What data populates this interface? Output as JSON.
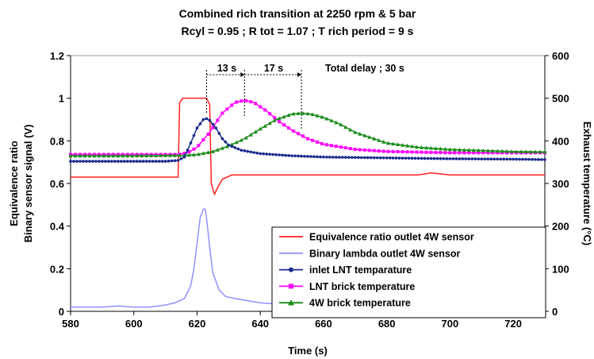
{
  "chart_data": {
    "type": "line",
    "title": "Combined rich transition at 2250 rpm & 5 bar",
    "subtitle": "Rcyl = 0.95 ; R tot = 1.07 ; T rich period = 9 s",
    "xlabel": "Time (s)",
    "ylabel_left": "Equivalence ratio",
    "ylabel_left2": "Binary sensor signal (V)",
    "ylabel_right": "Exhaust temperature (°C)",
    "xlim": [
      580,
      730
    ],
    "ylim_left": [
      0,
      1.2
    ],
    "ylim_right": [
      0,
      600
    ],
    "x_ticks": [
      "580",
      "600",
      "620",
      "640",
      "660",
      "680",
      "700",
      "720"
    ],
    "y_ticks_left": [
      "0",
      "0.2",
      "0.4",
      "0.6",
      "0.8",
      "1",
      "1.2"
    ],
    "y_ticks_right": [
      "0",
      "100",
      "200",
      "300",
      "400",
      "500",
      "600"
    ],
    "grid": false,
    "legend_position": "bottom-right",
    "annotations": {
      "delay1": "13 s",
      "delay2": "17 s",
      "total": "Total delay ; 30 s"
    },
    "series": [
      {
        "name": "Equivalence ratio outlet 4W sensor",
        "axis": "left",
        "color": "#ff2020",
        "marker": "none",
        "x": [
          580,
          600,
          614,
          614.5,
          615.5,
          623,
          624,
          624.5,
          625.5,
          626.5,
          628,
          631,
          640,
          660,
          680,
          690,
          694,
          700,
          720,
          730
        ],
        "y": [
          0.63,
          0.63,
          0.63,
          0.98,
          1.0,
          1.0,
          0.97,
          0.6,
          0.55,
          0.58,
          0.62,
          0.64,
          0.64,
          0.64,
          0.64,
          0.64,
          0.65,
          0.64,
          0.64,
          0.64
        ]
      },
      {
        "name": "Binary lambda outlet 4W sensor",
        "axis": "left",
        "color": "#9090ff",
        "marker": "none",
        "x": [
          580,
          590,
          595,
          600,
          605,
          610,
          613,
          616,
          618,
          619,
          620,
          621,
          622,
          622.5,
          623,
          624,
          625,
          627,
          629,
          632,
          636,
          640,
          650,
          660,
          680,
          700,
          720,
          730
        ],
        "y": [
          0.02,
          0.02,
          0.025,
          0.02,
          0.02,
          0.03,
          0.04,
          0.06,
          0.12,
          0.2,
          0.32,
          0.44,
          0.48,
          0.48,
          0.44,
          0.3,
          0.18,
          0.1,
          0.07,
          0.06,
          0.05,
          0.04,
          0.03,
          0.025,
          0.02,
          0.02,
          0.02,
          0.02
        ]
      },
      {
        "name": "inlet LNT temparature",
        "axis": "right",
        "color": "#1a2b8c",
        "marker": "circle",
        "x": [
          580,
          600,
          610,
          614,
          616,
          618,
          620,
          622,
          623,
          624,
          626,
          628,
          630,
          634,
          640,
          650,
          660,
          680,
          700,
          720,
          730
        ],
        "y": [
          352,
          352,
          352,
          354,
          362,
          395,
          430,
          450,
          452,
          448,
          430,
          405,
          390,
          378,
          370,
          365,
          362,
          360,
          358,
          357,
          356
        ]
      },
      {
        "name": "LNT brick temperature",
        "axis": "right",
        "color": "#ff00ff",
        "marker": "square",
        "x": [
          580,
          600,
          614,
          617,
          620,
          624,
          628,
          632,
          635,
          638,
          642,
          646,
          650,
          655,
          660,
          670,
          680,
          700,
          720,
          730
        ],
        "y": [
          368,
          368,
          368,
          372,
          385,
          420,
          465,
          490,
          495,
          490,
          470,
          445,
          425,
          405,
          392,
          380,
          375,
          372,
          372,
          372
        ]
      },
      {
        "name": "4W brick temperature",
        "axis": "right",
        "color": "#1a8c1a",
        "marker": "triangle",
        "x": [
          580,
          600,
          616,
          620,
          625,
          630,
          635,
          640,
          645,
          650,
          653,
          656,
          660,
          665,
          670,
          680,
          690,
          700,
          720,
          730
        ],
        "y": [
          365,
          365,
          366,
          368,
          375,
          388,
          405,
          428,
          450,
          463,
          465,
          463,
          455,
          440,
          420,
          395,
          385,
          380,
          375,
          374
        ]
      }
    ]
  }
}
